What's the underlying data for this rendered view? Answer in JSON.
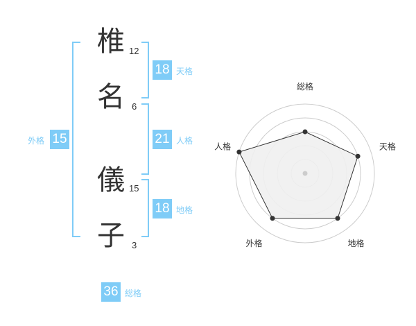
{
  "name": {
    "chars": [
      {
        "char": "椎",
        "strokes": "12"
      },
      {
        "char": "名",
        "strokes": "6"
      },
      {
        "char": "儀",
        "strokes": "15"
      },
      {
        "char": "子",
        "strokes": "3"
      }
    ]
  },
  "results": {
    "tenkaku": {
      "label": "天格",
      "value": "18"
    },
    "jinkaku": {
      "label": "人格",
      "value": "21"
    },
    "chikaku": {
      "label": "地格",
      "value": "18"
    },
    "gaikaku": {
      "label": "外格",
      "value": "15"
    },
    "soukaku": {
      "label": "総格",
      "value": "36"
    }
  },
  "colors": {
    "accent": "#7fccf7",
    "radar_fill": "#f0f0f0",
    "radar_line": "#333333"
  },
  "chart_data": {
    "type": "radar",
    "axes": [
      "総格",
      "天格",
      "地格",
      "外格",
      "人格"
    ],
    "values": [
      3,
      4,
      4,
      4,
      5
    ],
    "range": [
      0,
      5
    ],
    "rings": 5
  }
}
